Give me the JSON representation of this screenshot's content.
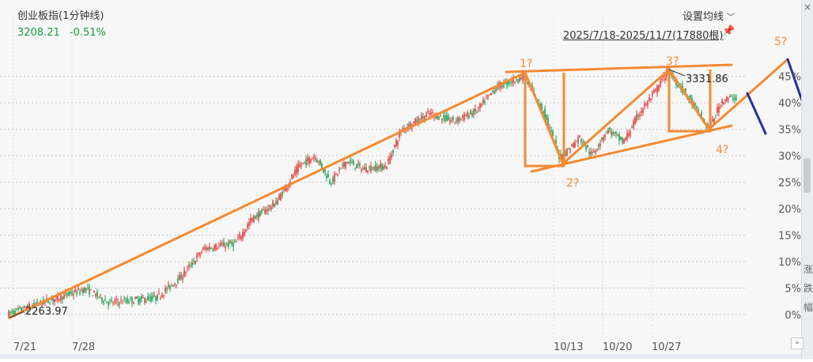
{
  "header": {
    "title": "创业板指(1分钟线)",
    "price": "3208.21",
    "change": "-0.51%",
    "settings_label": "设置均线",
    "range": "2025/7/18-2025/11/7(17880根)"
  },
  "colors": {
    "candle_up": "#e33b3b",
    "candle_down": "#1fa050",
    "wave": "#f58a32",
    "projection": "#2530a0",
    "price_up": "#1a9c3a"
  },
  "icons": {
    "pin": "pin-icon",
    "settings": "chevron-down-icon",
    "close": "close-icon",
    "scroll": "double-chevron-right-icon"
  },
  "chart_data": {
    "type": "candlestick",
    "title": "创业板指(1分钟线)",
    "x_ticks": [
      "7/21",
      "7/28",
      "10/13",
      "10/20",
      "10/27"
    ],
    "y_ticks": [
      "0%",
      "5%",
      "10%",
      "15%",
      "20%",
      "25%",
      "30%",
      "35%",
      "40%",
      "45%"
    ],
    "y_range_pct": [
      0,
      47
    ],
    "price_labels": [
      "2263.97",
      "3331.86"
    ],
    "low": 2263.97,
    "high": 3331.86,
    "wave_labels": [
      "1?",
      "2?",
      "3?",
      "4?",
      "5?"
    ],
    "grid": true
  },
  "side": {
    "top": "×",
    "chars": [
      "涨",
      "跌",
      "幅"
    ]
  },
  "nav": {
    "next": "»"
  }
}
